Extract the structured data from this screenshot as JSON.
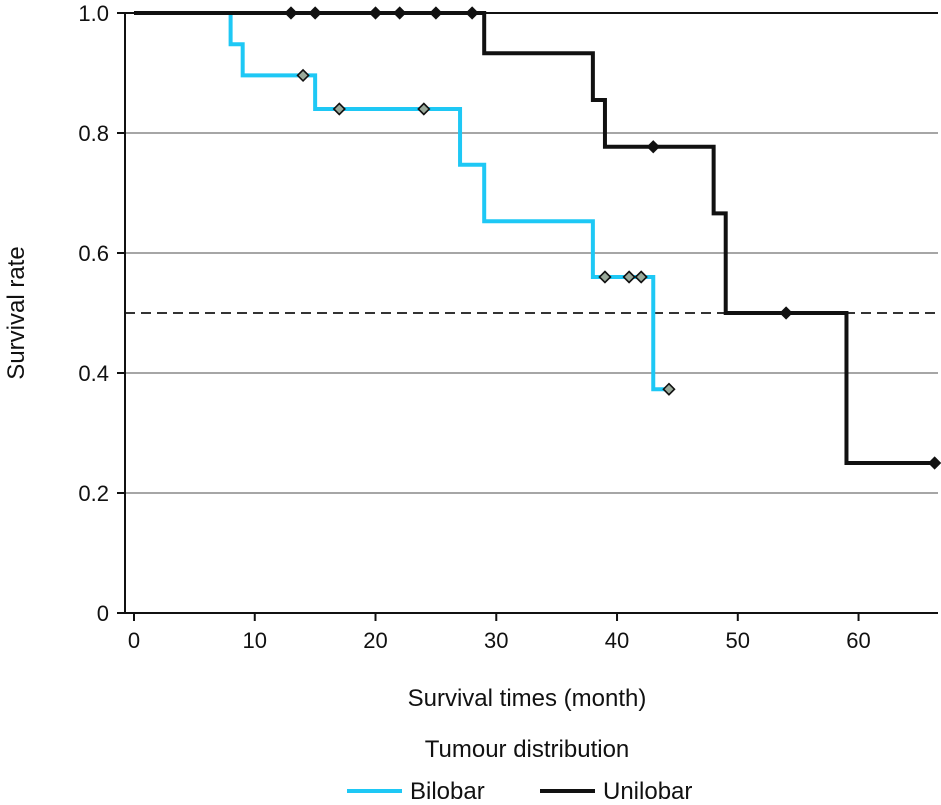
{
  "chart_data": {
    "type": "line",
    "subtype": "kaplan-meier step",
    "xlabel": "Survival times (month)",
    "ylabel": "Survival rate",
    "xlim": [
      0,
      66
    ],
    "ylim": [
      0,
      1.0
    ],
    "x_ticks": [
      0,
      10,
      20,
      30,
      40,
      50,
      60
    ],
    "y_ticks": [
      0,
      0.2,
      0.4,
      0.6,
      0.8,
      1.0
    ],
    "y_tick_labels": [
      "0",
      "0.2",
      "0.4",
      "0.6",
      "0.8",
      "1.0"
    ],
    "grid": "horizontal",
    "reference_line": {
      "y": 0.5,
      "style": "dashed"
    },
    "legend": {
      "title": "Tumour distribution",
      "position": "bottom"
    },
    "series": [
      {
        "name": "Bilobar",
        "color": "#1ec8f5",
        "steps": [
          [
            0,
            1.0
          ],
          [
            8,
            0.948
          ],
          [
            9,
            0.896
          ],
          [
            15,
            0.84
          ],
          [
            27,
            0.747
          ],
          [
            29,
            0.653
          ],
          [
            38,
            0.56
          ],
          [
            43,
            0.373
          ],
          [
            44.3,
            0.373
          ]
        ],
        "censored": [
          [
            14,
            0.896
          ],
          [
            17,
            0.84
          ],
          [
            24,
            0.84
          ],
          [
            39,
            0.56
          ],
          [
            41,
            0.56
          ],
          [
            42,
            0.56
          ],
          [
            44.3,
            0.373
          ]
        ]
      },
      {
        "name": "Unilobar",
        "color": "#111111",
        "steps": [
          [
            0,
            1.0
          ],
          [
            29,
            0.933
          ],
          [
            38,
            0.855
          ],
          [
            39,
            0.777
          ],
          [
            48,
            0.666
          ],
          [
            49,
            0.5
          ],
          [
            59,
            0.25
          ],
          [
            66.3,
            0.25
          ]
        ],
        "censored": [
          [
            13,
            1.0
          ],
          [
            15,
            1.0
          ],
          [
            20,
            1.0
          ],
          [
            22,
            1.0
          ],
          [
            25,
            1.0
          ],
          [
            28,
            1.0
          ],
          [
            43,
            0.777
          ],
          [
            54,
            0.5
          ],
          [
            66.3,
            0.25
          ]
        ]
      }
    ]
  }
}
